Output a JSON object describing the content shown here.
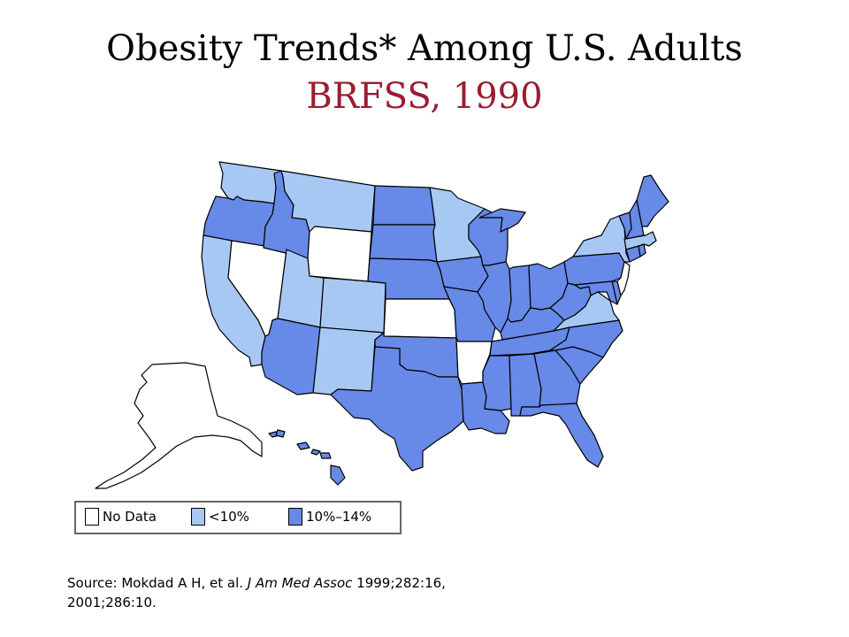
{
  "title": {
    "line1": "Obesity Trends* Among U.S. Adults",
    "line2": "BRFSS, 1990"
  },
  "colors": {
    "title_accent": "#9b1c31",
    "no_data": "#ffffff",
    "lt10": "#a8c8f4",
    "p10_14": "#6789e8"
  },
  "legend": [
    {
      "key": "no_data",
      "label": "No Data"
    },
    {
      "key": "lt10",
      "label": "<10%"
    },
    {
      "key": "p10_14",
      "label": "10%–14%"
    }
  ],
  "states": {
    "WA": "lt10",
    "OR": "p10_14",
    "CA": "lt10",
    "NV": "no_data",
    "ID": "p10_14",
    "MT": "lt10",
    "WY": "no_data",
    "UT": "lt10",
    "CO": "lt10",
    "AZ": "p10_14",
    "NM": "lt10",
    "ND": "p10_14",
    "SD": "p10_14",
    "NE": "p10_14",
    "KS": "no_data",
    "OK": "p10_14",
    "TX": "p10_14",
    "MN": "lt10",
    "IA": "p10_14",
    "MO": "p10_14",
    "AR": "no_data",
    "LA": "p10_14",
    "WI": "p10_14",
    "IL": "p10_14",
    "MI": "p10_14",
    "IN": "p10_14",
    "OH": "p10_14",
    "KY": "p10_14",
    "TN": "p10_14",
    "MS": "p10_14",
    "AL": "p10_14",
    "GA": "p10_14",
    "FL": "p10_14",
    "SC": "p10_14",
    "NC": "p10_14",
    "VA": "lt10",
    "WV": "p10_14",
    "MD": "p10_14",
    "DE": "p10_14",
    "PA": "p10_14",
    "NJ": "no_data",
    "NY": "lt10",
    "CT": "p10_14",
    "RI": "p10_14",
    "MA": "lt10",
    "VT": "p10_14",
    "NH": "p10_14",
    "ME": "p10_14",
    "AK": "no_data",
    "HI": "p10_14"
  },
  "source": {
    "prefix": "Source: Mokdad A H, et al. ",
    "journal": "J Am Med Assoc",
    "suffix": " 1999;282:16,",
    "line2": "2001;286:10."
  }
}
